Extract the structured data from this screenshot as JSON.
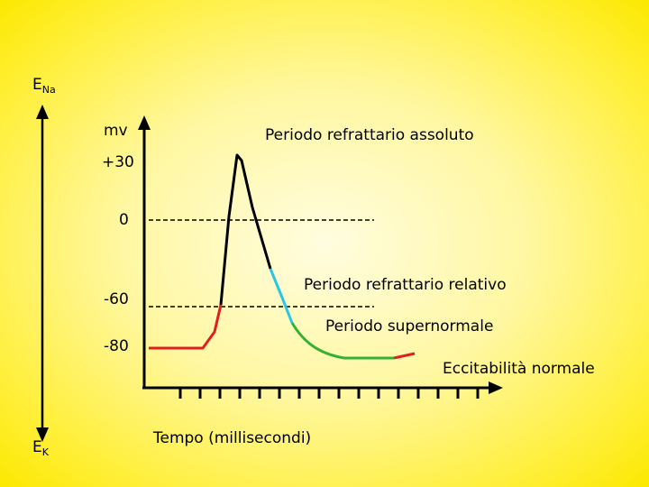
{
  "labels": {
    "ena_main": "E",
    "ena_sub": "Na",
    "ek_main": "E",
    "ek_sub": "K",
    "unit": "mv",
    "tick_30": "+30",
    "tick_0": "0",
    "tick_m60": "-60",
    "tick_m80": "-80",
    "absolute": "Periodo refrattario assoluto",
    "relative": "Periodo refrattario relativo",
    "supernormal": "Periodo supernormale",
    "normal": "Eccitabilità normale",
    "time_axis": "Tempo (millisecondi)"
  },
  "colors": {
    "background": "#fff380",
    "resting_phase": "#e02020",
    "absolute_phase": "#000000",
    "relative_phase": "#29c6e8",
    "supernormal_phase": "#33b233"
  }
}
